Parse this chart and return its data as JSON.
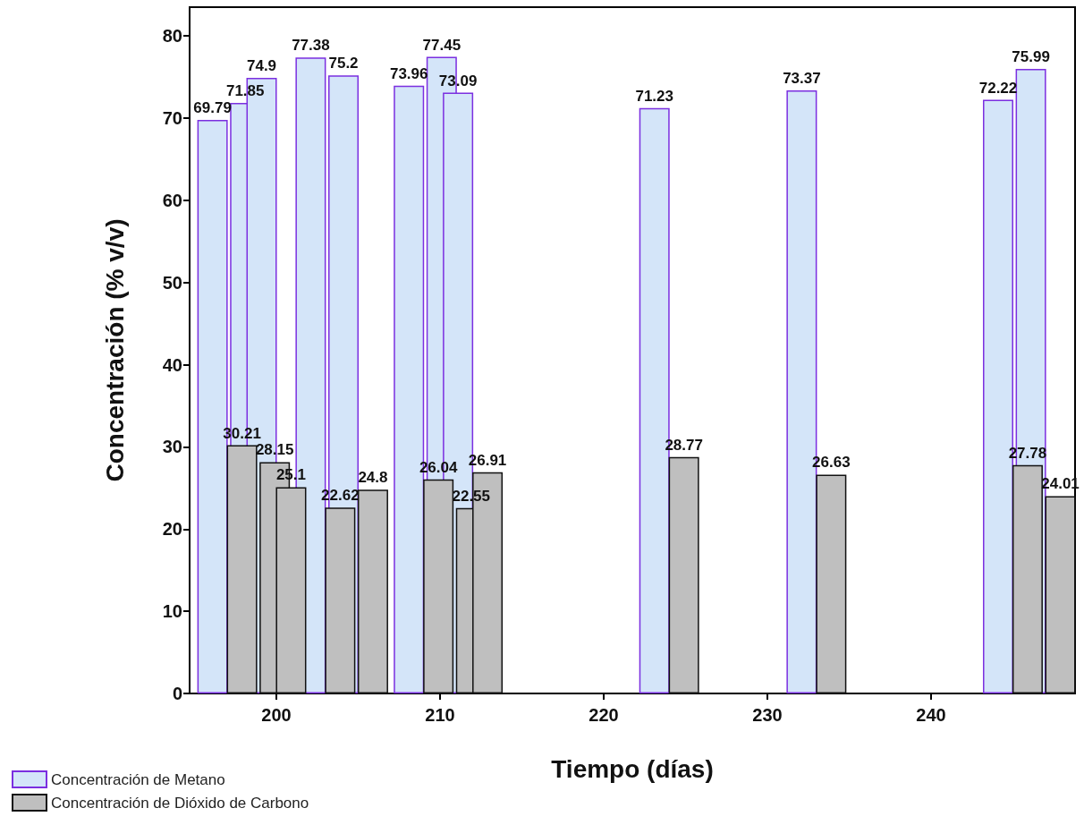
{
  "chart_data": {
    "type": "bar",
    "xlabel": "Tiempo (días)",
    "ylabel": "Concentración (% v/v)",
    "series": [
      {
        "name": "Concentración de Metano",
        "color": "#d4e5f9",
        "x": [
          196.1,
          198.1,
          199.1,
          202.1,
          204.1,
          208.1,
          210.1,
          211.1,
          223.1,
          232.1,
          244.1,
          246.1
        ],
        "values": [
          69.79,
          71.85,
          74.9,
          77.38,
          75.2,
          73.96,
          77.45,
          73.09,
          71.23,
          73.37,
          72.22,
          75.99
        ]
      },
      {
        "name": "Concentración de Dióxido de Carbono",
        "color": "#bfbfbf",
        "x": [
          197.9,
          199.9,
          200.9,
          203.9,
          205.9,
          209.9,
          211.9,
          212.9,
          224.9,
          233.9,
          245.9,
          247.9
        ],
        "values": [
          30.21,
          28.15,
          25.1,
          22.62,
          24.8,
          26.04,
          22.55,
          26.91,
          28.77,
          26.63,
          27.78,
          24.01
        ]
      }
    ],
    "xlim": [
      194.7,
      248.8
    ],
    "xticks": [
      200,
      210,
      220,
      230,
      240
    ],
    "ylim": [
      0,
      83.5
    ],
    "yticks": [
      0,
      10,
      20,
      30,
      40,
      50,
      60,
      70,
      80
    ],
    "data_labels": true,
    "grid": false,
    "legend": "bottom left"
  }
}
